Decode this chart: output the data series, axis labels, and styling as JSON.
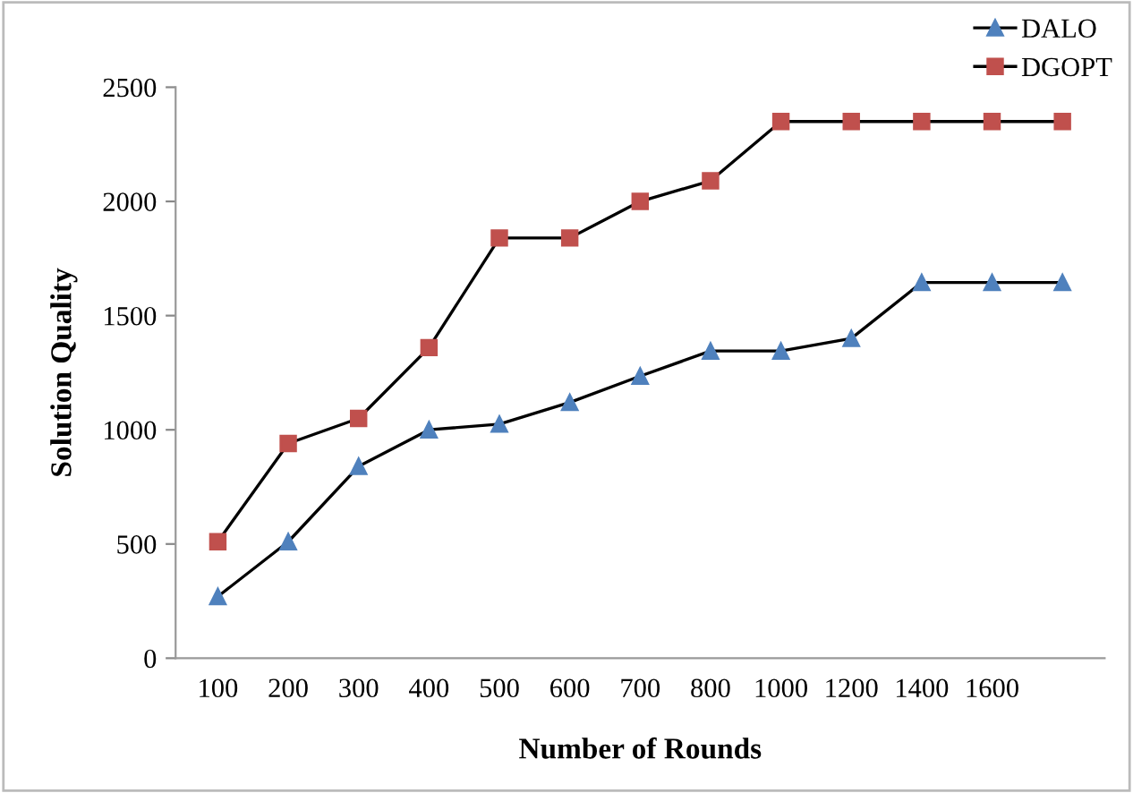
{
  "chart_data": {
    "type": "line",
    "xlabel": "Number of Rounds",
    "ylabel": "Solution Quality",
    "categories": [
      "100",
      "200",
      "300",
      "400",
      "500",
      "600",
      "700",
      "800",
      "1000",
      "1200",
      "1400",
      "1600",
      null
    ],
    "series": [
      {
        "name": "DALO",
        "color": "#4f81bd",
        "marker": "triangle",
        "values": [
          270,
          510,
          840,
          1000,
          1025,
          1120,
          1235,
          1345,
          1345,
          1400,
          1645,
          1645,
          1645
        ]
      },
      {
        "name": "DGOPT",
        "color": "#c0504d",
        "marker": "square",
        "values": [
          510,
          940,
          1050,
          1360,
          1840,
          1840,
          2000,
          2090,
          2350,
          2350,
          2350,
          2350,
          2350
        ]
      }
    ],
    "ylim": [
      0,
      2500
    ],
    "yticks": [
      0,
      500,
      1000,
      1500,
      2000,
      2500
    ],
    "grid": false,
    "legend": "top right",
    "line_style": "solid"
  }
}
